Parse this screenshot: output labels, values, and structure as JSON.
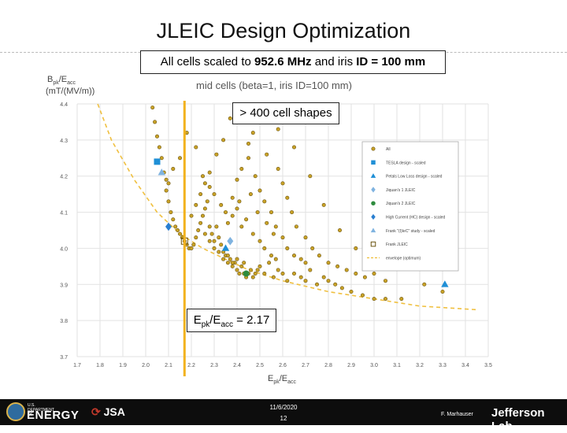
{
  "slide": {
    "title": "JLEIC Design Optimization",
    "scale_note_prefix": "All cells scaled to ",
    "scale_note_freq": "952.6 MHz",
    "scale_note_mid": " and iris ",
    "scale_note_id": "ID = 100 mm",
    "callout_cells": "> 400 cell shapes",
    "callout_epk_main": "E",
    "callout_epk_sub1": "pk",
    "callout_epk_slash": "/E",
    "callout_epk_sub2": "acc",
    "callout_epk_value": " = 2.17"
  },
  "footer": {
    "doe_small": "U.S. DEPARTMENT OF",
    "doe_big": "ENERGY",
    "jsa": "JSA",
    "date": "11/6/2020",
    "page": "12",
    "author": "F. Marhauser",
    "lab": "Jefferson Lab"
  },
  "colors": {
    "envelope": "#f0c040",
    "vline": "#f2b21e",
    "all_fill": "#c9a227",
    "tesla": "#1f8fd6",
    "pink": "#7fb3e0",
    "green": "#2e8b3e",
    "blue": "#2a7fd0"
  },
  "chart_data": {
    "type": "scatter",
    "title": "mid cells (beta=1, iris ID=100 mm)",
    "ylabel": "Bpk/Eacc (mT/(MV/m))",
    "xlabel": "Epk/Eacc",
    "xlim": [
      1.7,
      3.5
    ],
    "ylim": [
      3.7,
      4.4
    ],
    "xticks": [
      1.7,
      1.8,
      1.9,
      2.0,
      2.1,
      2.2,
      2.3,
      2.4,
      2.5,
      2.6,
      2.7,
      2.8,
      2.9,
      3.0,
      3.1,
      3.2,
      3.3,
      3.4,
      3.5
    ],
    "yticks": [
      3.7,
      3.8,
      3.9,
      4.0,
      4.1,
      4.2,
      4.3,
      4.4
    ],
    "grid": true,
    "legend_position": "right",
    "vertical_line_x": 2.17,
    "series": [
      {
        "name": "All",
        "marker": "circle",
        "points": [
          [
            2.03,
            4.39
          ],
          [
            2.04,
            4.35
          ],
          [
            2.05,
            4.31
          ],
          [
            2.06,
            4.28
          ],
          [
            2.07,
            4.25
          ],
          [
            2.08,
            4.21
          ],
          [
            2.09,
            4.19
          ],
          [
            2.09,
            4.16
          ],
          [
            2.1,
            4.13
          ],
          [
            2.11,
            4.1
          ],
          [
            2.12,
            4.08
          ],
          [
            2.13,
            4.06
          ],
          [
            2.14,
            4.05
          ],
          [
            2.15,
            4.04
          ],
          [
            2.16,
            4.03
          ],
          [
            2.17,
            4.02
          ],
          [
            2.18,
            4.01
          ],
          [
            2.19,
            4.0
          ],
          [
            2.2,
            4.0
          ],
          [
            2.21,
            4.01
          ],
          [
            2.22,
            4.03
          ],
          [
            2.23,
            4.05
          ],
          [
            2.24,
            4.07
          ],
          [
            2.25,
            4.09
          ],
          [
            2.26,
            4.11
          ],
          [
            2.27,
            4.13
          ],
          [
            2.28,
            4.06
          ],
          [
            2.29,
            4.04
          ],
          [
            2.3,
            4.02
          ],
          [
            2.31,
            4.06
          ],
          [
            2.32,
            4.03
          ],
          [
            2.33,
            4.01
          ],
          [
            2.34,
            3.99
          ],
          [
            2.35,
            3.98
          ],
          [
            2.36,
            3.96
          ],
          [
            2.37,
            3.97
          ],
          [
            2.38,
            3.95
          ],
          [
            2.39,
            3.96
          ],
          [
            2.4,
            3.94
          ],
          [
            2.41,
            3.93
          ],
          [
            2.42,
            3.95
          ],
          [
            2.43,
            3.93
          ],
          [
            2.44,
            3.92
          ],
          [
            2.45,
            3.93
          ],
          [
            2.46,
            3.94
          ],
          [
            2.47,
            3.92
          ],
          [
            2.48,
            3.93
          ],
          [
            2.49,
            3.94
          ],
          [
            2.5,
            3.95
          ],
          [
            2.52,
            3.93
          ],
          [
            2.54,
            3.96
          ],
          [
            2.56,
            3.92
          ],
          [
            2.58,
            3.94
          ],
          [
            2.6,
            3.93
          ],
          [
            2.62,
            3.91
          ],
          [
            2.65,
            3.93
          ],
          [
            2.68,
            3.92
          ],
          [
            2.7,
            3.91
          ],
          [
            2.72,
            3.94
          ],
          [
            2.75,
            3.9
          ],
          [
            2.78,
            3.92
          ],
          [
            2.8,
            3.91
          ],
          [
            2.83,
            3.9
          ],
          [
            2.86,
            3.89
          ],
          [
            2.9,
            3.88
          ],
          [
            2.95,
            3.87
          ],
          [
            3.0,
            3.86
          ],
          [
            3.05,
            3.86
          ],
          [
            3.12,
            3.86
          ],
          [
            3.22,
            3.9
          ],
          [
            3.3,
            3.88
          ],
          [
            2.1,
            4.18
          ],
          [
            2.12,
            4.22
          ],
          [
            2.15,
            4.25
          ],
          [
            2.18,
            4.32
          ],
          [
            2.22,
            4.28
          ],
          [
            2.25,
            4.2
          ],
          [
            2.28,
            4.17
          ],
          [
            2.3,
            4.15
          ],
          [
            2.33,
            4.12
          ],
          [
            2.35,
            4.1
          ],
          [
            2.38,
            4.14
          ],
          [
            2.4,
            4.19
          ],
          [
            2.42,
            4.22
          ],
          [
            2.45,
            4.25
          ],
          [
            2.48,
            4.2
          ],
          [
            2.5,
            4.16
          ],
          [
            2.52,
            4.13
          ],
          [
            2.55,
            4.1
          ],
          [
            2.57,
            4.06
          ],
          [
            2.6,
            4.03
          ],
          [
            2.62,
            4.0
          ],
          [
            2.65,
            3.98
          ],
          [
            2.68,
            3.97
          ],
          [
            2.7,
            3.96
          ],
          [
            2.37,
            4.36
          ],
          [
            2.45,
            4.29
          ],
          [
            2.47,
            4.32
          ],
          [
            2.53,
            4.26
          ],
          [
            2.58,
            4.22
          ],
          [
            2.6,
            4.18
          ],
          [
            2.62,
            4.14
          ],
          [
            2.64,
            4.1
          ],
          [
            2.66,
            4.06
          ],
          [
            2.7,
            4.03
          ],
          [
            2.73,
            4.0
          ],
          [
            2.76,
            3.98
          ],
          [
            2.8,
            3.96
          ],
          [
            2.84,
            3.95
          ],
          [
            2.88,
            3.94
          ],
          [
            2.92,
            3.93
          ],
          [
            2.96,
            3.92
          ],
          [
            3.0,
            3.93
          ],
          [
            3.05,
            3.95
          ],
          [
            2.42,
            4.06
          ],
          [
            2.44,
            4.08
          ],
          [
            2.47,
            4.04
          ],
          [
            2.5,
            4.02
          ],
          [
            2.52,
            4.0
          ],
          [
            2.55,
            3.98
          ],
          [
            2.57,
            3.97
          ],
          [
            2.26,
            4.04
          ],
          [
            2.28,
            4.02
          ],
          [
            2.3,
            4.0
          ],
          [
            2.32,
            3.99
          ],
          [
            2.34,
            3.97
          ],
          [
            2.36,
            3.98
          ],
          [
            2.38,
            3.96
          ],
          [
            2.4,
            3.97
          ],
          [
            2.43,
            3.96
          ],
          [
            2.2,
            4.09
          ],
          [
            2.22,
            4.12
          ],
          [
            2.24,
            4.15
          ],
          [
            2.26,
            4.18
          ],
          [
            2.28,
            4.21
          ],
          [
            2.31,
            4.26
          ],
          [
            2.34,
            4.3
          ],
          [
            2.58,
            4.33
          ],
          [
            2.65,
            4.28
          ],
          [
            2.72,
            4.2
          ],
          [
            2.78,
            4.12
          ],
          [
            2.85,
            4.05
          ],
          [
            2.92,
            4.0
          ],
          [
            2.98,
            3.97
          ],
          [
            3.05,
            3.91
          ],
          [
            2.36,
            4.07
          ],
          [
            2.38,
            4.09
          ],
          [
            2.4,
            4.11
          ],
          [
            2.41,
            4.13
          ],
          [
            2.46,
            4.15
          ],
          [
            2.49,
            4.1
          ],
          [
            2.53,
            4.07
          ],
          [
            2.56,
            4.04
          ]
        ]
      },
      {
        "name": "TESLA design - scaled",
        "marker": "square",
        "points": [
          [
            2.05,
            4.24
          ]
        ]
      },
      {
        "name": "Petals Low Loss design - scaled",
        "marker": "triangle",
        "points": [
          [
            2.35,
            4.0
          ],
          [
            3.31,
            3.9
          ]
        ]
      },
      {
        "name": "Jiquan's 1 JLEIC",
        "marker": "diamond",
        "points": [
          [
            2.37,
            4.02
          ]
        ]
      },
      {
        "name": "Jiquan's 2 JLEIC",
        "marker": "circle",
        "points": [
          [
            2.44,
            3.93
          ]
        ]
      },
      {
        "name": "High Current (HC) design - scaled",
        "marker": "diamond",
        "points": [
          [
            2.1,
            4.06
          ]
        ]
      },
      {
        "name": "Frank \"(I)IeC\" study - scaled",
        "marker": "triangle",
        "points": [
          [
            2.07,
            4.21
          ]
        ]
      },
      {
        "name": "Frank JLEIC",
        "marker": "square-open",
        "points": [
          [
            2.17,
            4.02
          ]
        ]
      },
      {
        "name": "envelope (optimum)",
        "marker": "dashed-line",
        "points": [
          [
            1.79,
            4.4
          ],
          [
            1.85,
            4.3
          ],
          [
            1.95,
            4.19
          ],
          [
            2.05,
            4.1
          ],
          [
            2.15,
            4.04
          ],
          [
            2.25,
            4.0
          ],
          [
            2.35,
            3.97
          ],
          [
            2.45,
            3.94
          ],
          [
            2.6,
            3.91
          ],
          [
            2.8,
            3.88
          ],
          [
            3.0,
            3.86
          ],
          [
            3.2,
            3.84
          ],
          [
            3.45,
            3.83
          ]
        ]
      }
    ]
  }
}
